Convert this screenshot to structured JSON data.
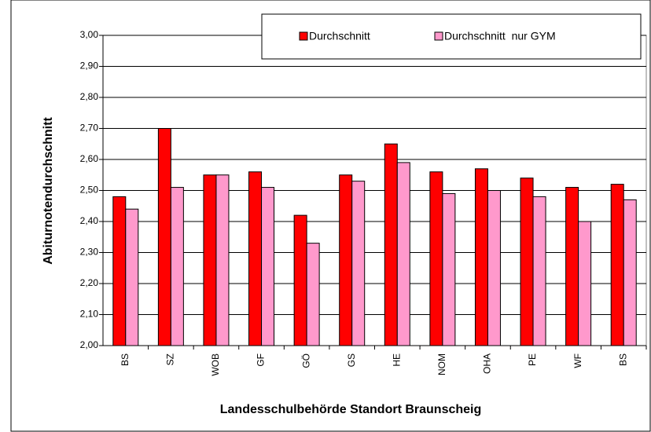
{
  "chart_data": {
    "type": "bar",
    "x_label": "Landesschulbehörde Standort Braunscheig",
    "y_label": "Abiturnotendurchschnitt",
    "categories": [
      "BS",
      "SZ",
      "WOB",
      "GF",
      "GÖ",
      "GS",
      "HE",
      "NOM",
      "OHA",
      "PE",
      "WF",
      "BS"
    ],
    "series": [
      {
        "name": "Durchschnitt",
        "color": "#ff0000",
        "values": [
          2.48,
          2.7,
          2.55,
          2.56,
          2.42,
          2.55,
          2.65,
          2.56,
          2.57,
          2.54,
          2.51,
          2.52
        ]
      },
      {
        "name": "Durchschnitt  nur GYM",
        "color": "#ff99cc",
        "values": [
          2.44,
          2.51,
          2.55,
          2.51,
          2.33,
          2.53,
          2.59,
          2.49,
          2.5,
          2.48,
          2.4,
          2.47
        ]
      }
    ],
    "ylim": [
      2.0,
      3.0
    ],
    "yticks": [
      {
        "value": 2.0,
        "label": "2,00"
      },
      {
        "value": 2.1,
        "label": "2,10"
      },
      {
        "value": 2.2,
        "label": "2,20"
      },
      {
        "value": 2.3,
        "label": "2,30"
      },
      {
        "value": 2.4,
        "label": "2,40"
      },
      {
        "value": 2.5,
        "label": "2,50"
      },
      {
        "value": 2.6,
        "label": "2,60"
      },
      {
        "value": 2.7,
        "label": "2,70"
      },
      {
        "value": 2.8,
        "label": "2,80"
      },
      {
        "value": 2.9,
        "label": "2,90"
      },
      {
        "value": 3.0,
        "label": "3,00"
      }
    ],
    "grid": true,
    "legend_position": "top-right"
  }
}
